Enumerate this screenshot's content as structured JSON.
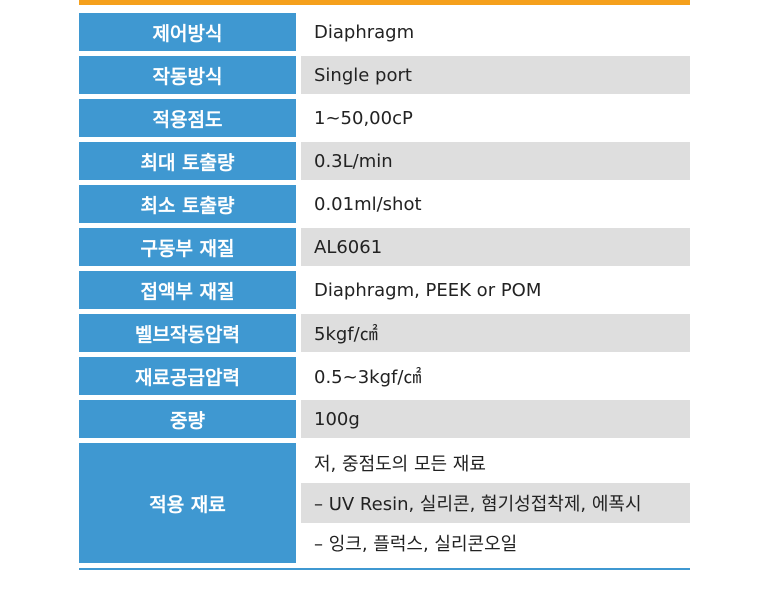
{
  "colors": {
    "accent_top": "#f5a01c",
    "label_bg": "#3f98d1",
    "stripe_bg": "#dedede"
  },
  "specs": [
    {
      "label": "제어방식",
      "value": "Diaphragm"
    },
    {
      "label": "작동방식",
      "value": "Single port"
    },
    {
      "label": "적용점도",
      "value": "1~50,00cP"
    },
    {
      "label": "최대 토출량",
      "value": "0.3L/min"
    },
    {
      "label": "최소 토출량",
      "value": "0.01ml/shot"
    },
    {
      "label": "구동부 재질",
      "value": "AL6061"
    },
    {
      "label": "접액부 재질",
      "value": "Diaphragm, PEEK or POM"
    },
    {
      "label": "벨브작동압력",
      "value": "5kgf/㎠"
    },
    {
      "label": "재료공급압력",
      "value": "0.5~3kgf/㎠"
    },
    {
      "label": "중량",
      "value": "100g"
    }
  ],
  "materials": {
    "label": "적용 재료",
    "lines": [
      "저, 중점도의 모든 재료",
      "– UV Resin, 실리콘, 혐기성접착제, 에폭시",
      "– 잉크, 플럭스, 실리콘오일"
    ]
  }
}
